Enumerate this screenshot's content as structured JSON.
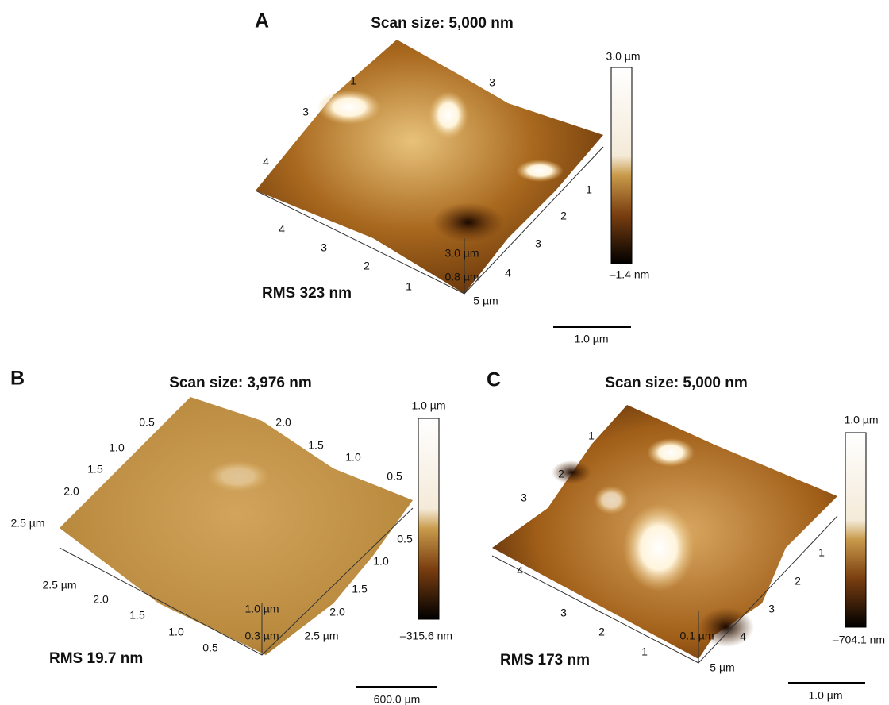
{
  "panels": [
    {
      "letter": "A",
      "title": "Scan size: 5,000 nm",
      "rms": "RMS 323 nm",
      "scale_bar": "1.0 µm",
      "colorbar_max": "3.0 µm",
      "colorbar_min": "–1.4 nm",
      "z_labels": [
        "3.0 µm",
        "0.8 µm"
      ],
      "axis_left": [
        "1",
        "3",
        "4"
      ],
      "axis_back": [
        "3"
      ],
      "axis_front": [
        "4",
        "3",
        "2",
        "1"
      ],
      "axis_right": [
        "1",
        "2",
        "3",
        "4",
        "5 µm"
      ]
    },
    {
      "letter": "B",
      "title": "Scan size: 3,976 nm",
      "rms": "RMS 19.7 nm",
      "scale_bar": "600.0 µm",
      "colorbar_max": "1.0 µm",
      "colorbar_min": "–315.6 nm",
      "z_labels": [
        "1.0 µm",
        "0.3 µm"
      ],
      "axis_left": [
        "0.5",
        "1.0",
        "1.5",
        "2.0",
        "2.5 µm"
      ],
      "axis_back": [
        "2.0",
        "1.5",
        "1.0",
        "0.5"
      ],
      "axis_front": [
        "2.5 µm",
        "2.0",
        "1.5",
        "1.0",
        "0.5"
      ],
      "axis_right": [
        "0.5",
        "1.0",
        "1.5",
        "2.0",
        "2.5 µm"
      ]
    },
    {
      "letter": "C",
      "title": "Scan size: 5,000 nm",
      "rms": "RMS 173 nm",
      "scale_bar": "1.0 µm",
      "colorbar_max": "1.0 µm",
      "colorbar_min": "–704.1 nm",
      "z_labels": [
        "0.1 µm"
      ],
      "axis_left": [
        "1",
        "2",
        "3"
      ],
      "axis_back": [],
      "axis_front": [
        "4",
        "3",
        "2",
        "1"
      ],
      "axis_right": [
        "1",
        "2",
        "3",
        "4",
        "5 µm"
      ]
    }
  ]
}
